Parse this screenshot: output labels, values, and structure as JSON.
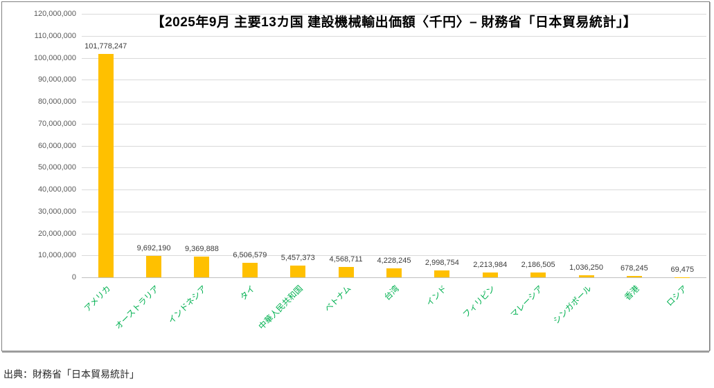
{
  "page": {
    "source": "出典：財務省「日本貿易統計」"
  },
  "chart_data": {
    "type": "bar",
    "title": "【2025年9月 主要13カ国 建設機械輸出価額〈千円〉– 財務省「日本貿易統計」】",
    "categories": [
      "アメリカ",
      "オーストラリア",
      "インドネシア",
      "タイ",
      "中華人民共和国",
      "ベトナム",
      "台湾",
      "インド",
      "フィリピン",
      "マレーシア",
      "シンガポール",
      "香港",
      "ロシア"
    ],
    "values": [
      101778247,
      9692190,
      9369888,
      6506579,
      5457373,
      4568711,
      4228245,
      2998754,
      2213984,
      2186505,
      1036250,
      678245,
      69475
    ],
    "value_labels": [
      "101,778,247",
      "9,692,190",
      "9,369,888",
      "6,506,579",
      "5,457,373",
      "4,568,711",
      "4,228,245",
      "2,998,754",
      "2,213,984",
      "2,186,505",
      "1,036,250",
      "678,245",
      "69,475"
    ],
    "xlabel": "",
    "ylabel": "",
    "ylim": [
      0,
      120000000
    ],
    "ytick_step": 10000000,
    "ytick_labels": [
      "0",
      "10,000,000",
      "20,000,000",
      "30,000,000",
      "40,000,000",
      "50,000,000",
      "60,000,000",
      "70,000,000",
      "80,000,000",
      "90,000,000",
      "100,000,000",
      "110,000,000",
      "120,000,000"
    ],
    "grid": true,
    "legend": "none",
    "colors": {
      "bar": "#FFC000",
      "category_label": "#00B050",
      "axis_tick_label": "#595959",
      "value_label": "#3B3B3B",
      "gridline": "#D9D9D9",
      "axis_line": "#BFBFBF",
      "frame_border": "#7F7F7F",
      "title_text": "#111111"
    }
  }
}
